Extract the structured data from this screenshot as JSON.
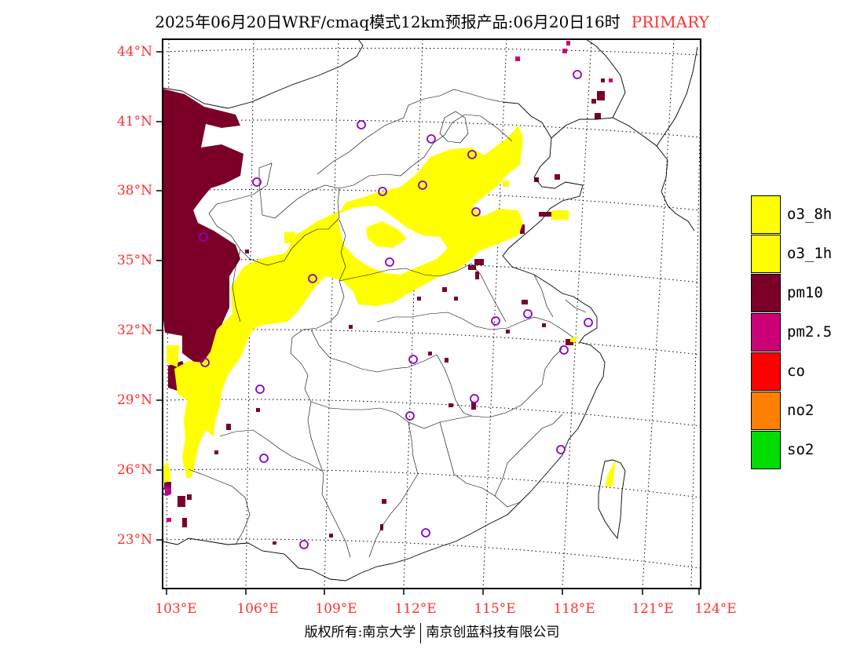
{
  "title": {
    "main": "2025年06月20日WRF/cmaq模式12km预报产品:06月20日16时",
    "tag": "PRIMARY"
  },
  "axes": {
    "latitude_labels": [
      "44°N",
      "41°N",
      "38°N",
      "35°N",
      "32°N",
      "29°N",
      "26°N",
      "23°N"
    ],
    "longitude_labels": [
      "103°E",
      "106°E",
      "109°E",
      "112°E",
      "115°E",
      "118°E",
      "121°E",
      "124°E"
    ]
  },
  "legend": [
    {
      "label": "o3_8h",
      "color": "#ffff00"
    },
    {
      "label": "o3_1h",
      "color": "#ffff00"
    },
    {
      "label": "pm10",
      "color": "#7a0028"
    },
    {
      "label": "pm2.5",
      "color": "#cc0077"
    },
    {
      "label": "co",
      "color": "#ff0000"
    },
    {
      "label": "no2",
      "color": "#ff8000"
    },
    {
      "label": "so2",
      "color": "#00dd00"
    }
  ],
  "copyright": {
    "owner": "版权所有:南京大学",
    "company": "南京创蓝科技有限公司"
  },
  "colors": {
    "o3": "#ffff00",
    "pm10": "#7a0028",
    "pm25": "#cc0077",
    "city_marker": "#8a00c8",
    "axis_label": "#ff3030"
  }
}
